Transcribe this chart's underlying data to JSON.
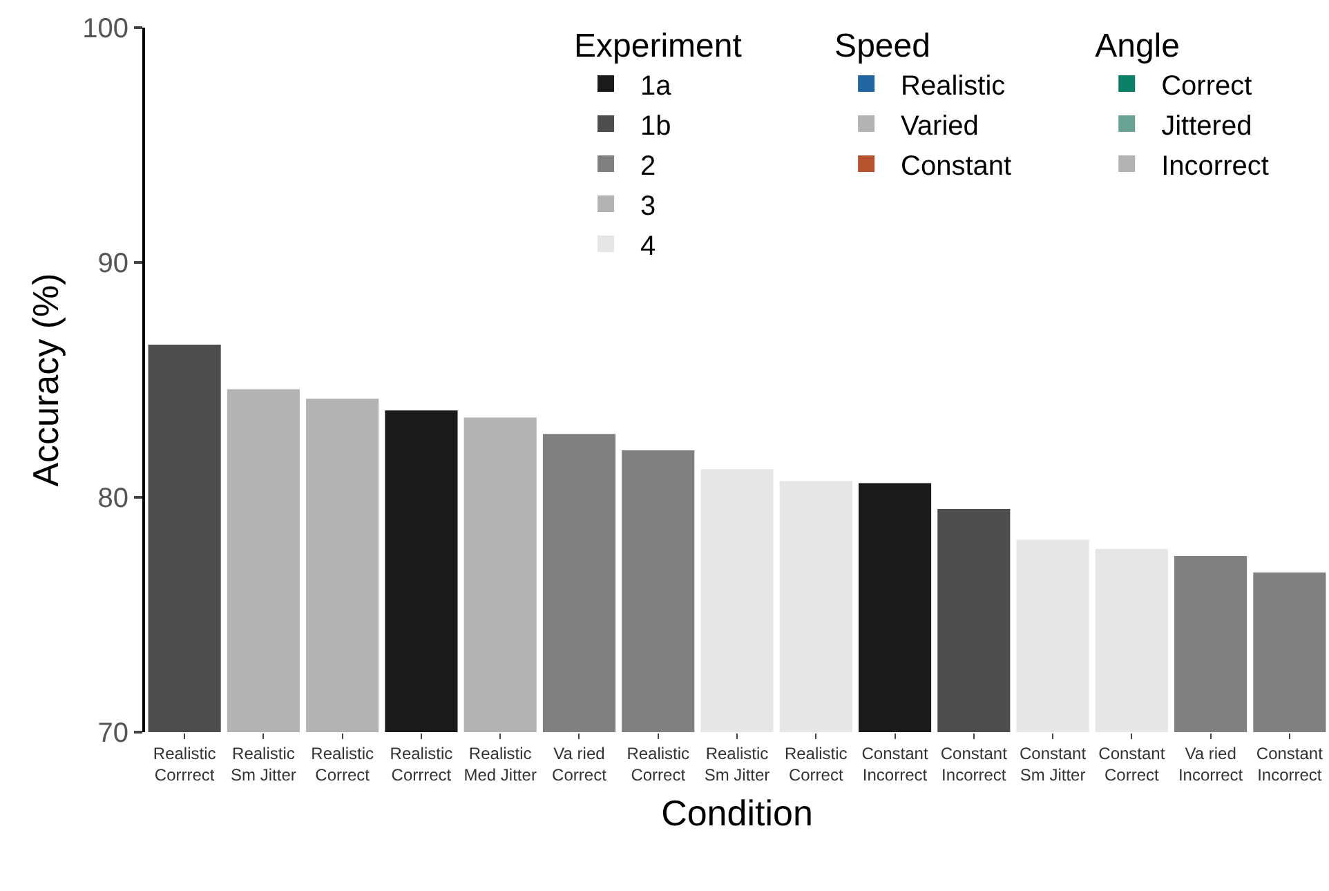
{
  "chart_data": {
    "type": "bar",
    "xlabel": "Condition",
    "ylabel": "Accuracy (%)",
    "legend_title": "Experiment",
    "categories": [
      "Realistic\nCorrrect",
      "Realistic\nSm Jitter",
      "Realistic\nCorrect",
      "Realistic\nCorrrect",
      "Realistic\nMed Jitter",
      "Va ried\nCorrect",
      "Realistic\nCorrect",
      "Realistic\nSm Jitter",
      "Realistic\nCorrect",
      "Constant\nIncorrect",
      "Constant\nIncorrect",
      "Constant\nSm Jitter",
      "Constant\nCorrect",
      "Va ried\nIncorrect",
      "Constant\nIncorrect"
    ],
    "series": [
      {
        "name": "1a",
        "color": "#1a1a1a",
        "values": [
          null,
          null,
          null,
          83.7,
          null,
          null,
          null,
          null,
          null,
          80.6,
          null,
          null,
          null,
          null,
          null
        ]
      },
      {
        "name": "1b",
        "color": "#4d4d4d",
        "values": [
          86.5,
          null,
          null,
          null,
          null,
          null,
          null,
          null,
          null,
          null,
          79.5,
          null,
          null,
          null,
          null
        ]
      },
      {
        "name": "2",
        "color": "#808080",
        "values": [
          null,
          null,
          null,
          null,
          null,
          82.7,
          82.0,
          null,
          null,
          null,
          null,
          null,
          null,
          77.5,
          76.8
        ]
      },
      {
        "name": "3",
        "color": "#b3b3b3",
        "values": [
          null,
          84.6,
          84.2,
          null,
          83.4,
          null,
          null,
          null,
          null,
          null,
          null,
          null,
          null,
          null,
          null
        ]
      },
      {
        "name": "4",
        "color": "#e6e6e6",
        "values": [
          null,
          null,
          null,
          null,
          null,
          null,
          null,
          81.2,
          80.7,
          null,
          null,
          78.2,
          77.8,
          null,
          null
        ]
      },
      {
        "name": "Realistic",
        "color": "#2066a0",
        "values": [
          null,
          null,
          null,
          null,
          null,
          null,
          null,
          null,
          null,
          null,
          null,
          null,
          null,
          null,
          null
        ]
      },
      {
        "name": "Varied",
        "color": "#b3b3b3",
        "values": [
          null,
          null,
          null,
          null,
          null,
          null,
          null,
          null,
          null,
          null,
          null,
          null,
          null,
          null,
          null
        ]
      },
      {
        "name": "Constant",
        "color": "#b5532f",
        "values": [
          null,
          null,
          null,
          null,
          null,
          null,
          null,
          null,
          null,
          null,
          null,
          null,
          null,
          null,
          null
        ]
      },
      {
        "name": "Correct",
        "color": "#0b8068",
        "values": [
          null,
          null,
          null,
          null,
          null,
          null,
          null,
          null,
          null,
          null,
          null,
          null,
          null,
          null,
          null
        ]
      },
      {
        "name": "Jittered",
        "color": "#6aa295",
        "values": [
          null,
          null,
          null,
          null,
          null,
          null,
          null,
          null,
          null,
          null,
          null,
          null,
          null,
          null,
          null
        ]
      },
      {
        "name": "Incorrect",
        "color": "#b3b3b3",
        "values": [
          null,
          null,
          null,
          null,
          null,
          null,
          null,
          null,
          null,
          null,
          null,
          null,
          null,
          null,
          null
        ]
      }
    ],
    "annotations": [
      "Speed",
      "Angle"
    ],
    "ylim": [
      70,
      100
    ],
    "yticks": [
      70,
      80,
      90,
      100
    ],
    "grid": false,
    "legend": "top right"
  }
}
